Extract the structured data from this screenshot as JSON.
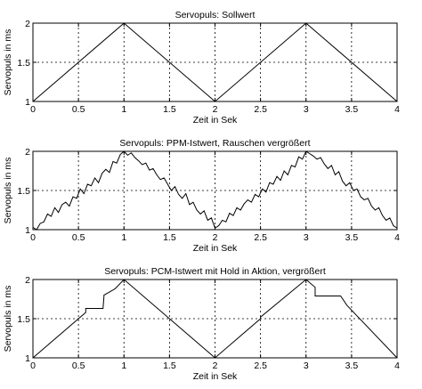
{
  "chart_data": [
    {
      "type": "line",
      "title": "Servopuls: Sollwert",
      "xlabel": "Zeit in Sek",
      "ylabel": "Servopuls in ms",
      "xlim": [
        0,
        4
      ],
      "ylim": [
        1,
        2
      ],
      "xticks": [
        "0",
        "0.5",
        "1",
        "1.5",
        "2",
        "2.5",
        "3",
        "3.5",
        "4"
      ],
      "yticks": [
        "1",
        "1.5",
        "2"
      ],
      "grid": true,
      "series": [
        {
          "color": "#000000",
          "x": [
            0,
            1,
            2,
            3,
            4
          ],
          "y": [
            1.0,
            2.0,
            1.0,
            2.0,
            1.0
          ]
        }
      ]
    },
    {
      "type": "line",
      "title": "Servopuls: PPM-Istwert, Rauschen vergrößert",
      "xlabel": "Zeit in Sek",
      "ylabel": "Servopuls in ms",
      "xlim": [
        0,
        4
      ],
      "ylim": [
        1,
        2
      ],
      "xticks": [
        "0",
        "0.5",
        "1",
        "1.5",
        "2",
        "2.5",
        "3",
        "3.5",
        "4"
      ],
      "yticks": [
        "1",
        "1.5",
        "2"
      ],
      "grid": true,
      "series": [
        {
          "color": "#000000",
          "x": [
            0.0,
            0.04,
            0.08,
            0.12,
            0.16,
            0.2,
            0.24,
            0.28,
            0.32,
            0.36,
            0.4,
            0.44,
            0.48,
            0.52,
            0.56,
            0.6,
            0.64,
            0.68,
            0.72,
            0.76,
            0.8,
            0.84,
            0.88,
            0.92,
            0.96,
            1.0,
            1.04,
            1.08,
            1.12,
            1.16,
            1.2,
            1.24,
            1.28,
            1.32,
            1.36,
            1.4,
            1.44,
            1.48,
            1.52,
            1.56,
            1.6,
            1.64,
            1.68,
            1.72,
            1.76,
            1.8,
            1.84,
            1.88,
            1.92,
            1.96,
            2.0,
            2.04,
            2.08,
            2.12,
            2.16,
            2.2,
            2.24,
            2.28,
            2.32,
            2.36,
            2.4,
            2.44,
            2.48,
            2.52,
            2.56,
            2.6,
            2.64,
            2.68,
            2.72,
            2.76,
            2.8,
            2.84,
            2.88,
            2.92,
            2.96,
            3.0,
            3.04,
            3.08,
            3.12,
            3.16,
            3.2,
            3.24,
            3.28,
            3.32,
            3.36,
            3.4,
            3.44,
            3.48,
            3.52,
            3.56,
            3.6,
            3.64,
            3.68,
            3.72,
            3.76,
            3.8,
            3.84,
            3.88,
            3.92,
            3.96,
            4.0
          ],
          "y": [
            1.03,
            1.0,
            1.08,
            1.1,
            1.2,
            1.17,
            1.28,
            1.22,
            1.32,
            1.35,
            1.3,
            1.42,
            1.4,
            1.52,
            1.46,
            1.58,
            1.56,
            1.66,
            1.6,
            1.72,
            1.77,
            1.73,
            1.87,
            1.85,
            1.96,
            2.0,
            1.95,
            1.98,
            1.92,
            1.88,
            1.83,
            1.85,
            1.76,
            1.78,
            1.7,
            1.64,
            1.66,
            1.58,
            1.5,
            1.55,
            1.45,
            1.4,
            1.46,
            1.32,
            1.35,
            1.25,
            1.2,
            1.24,
            1.12,
            1.15,
            1.02,
            1.05,
            1.12,
            1.1,
            1.21,
            1.18,
            1.28,
            1.25,
            1.33,
            1.38,
            1.35,
            1.45,
            1.42,
            1.52,
            1.48,
            1.6,
            1.58,
            1.68,
            1.63,
            1.75,
            1.7,
            1.82,
            1.8,
            1.93,
            1.9,
            2.0,
            1.97,
            1.94,
            1.9,
            1.92,
            1.84,
            1.78,
            1.82,
            1.7,
            1.74,
            1.62,
            1.56,
            1.6,
            1.5,
            1.52,
            1.42,
            1.38,
            1.4,
            1.3,
            1.25,
            1.28,
            1.18,
            1.12,
            1.15,
            1.05,
            1.02
          ]
        }
      ]
    },
    {
      "type": "line",
      "title": "Servopuls: PCM-Istwert mit Hold in Aktion, vergrößert",
      "xlabel": "Zeit in Sek",
      "ylabel": "Servopuls in ms",
      "xlim": [
        0,
        4
      ],
      "ylim": [
        1,
        2
      ],
      "xticks": [
        "0",
        "0.5",
        "1",
        "1.5",
        "2",
        "2.5",
        "3",
        "3.5",
        "4"
      ],
      "yticks": [
        "1",
        "1.5",
        "2"
      ],
      "grid": true,
      "series": [
        {
          "color": "#000000",
          "x": [
            0,
            0.58,
            0.58,
            0.77,
            0.78,
            0.78,
            0.9,
            1.0,
            2.0,
            2.5,
            2.5,
            3.0,
            3.1,
            3.1,
            3.38,
            3.45,
            4.0
          ],
          "y": [
            1.0,
            1.58,
            1.63,
            1.63,
            1.78,
            1.8,
            1.88,
            2.0,
            1.0,
            1.5,
            1.52,
            2.0,
            1.9,
            1.79,
            1.79,
            1.67,
            1.0
          ]
        }
      ]
    }
  ]
}
